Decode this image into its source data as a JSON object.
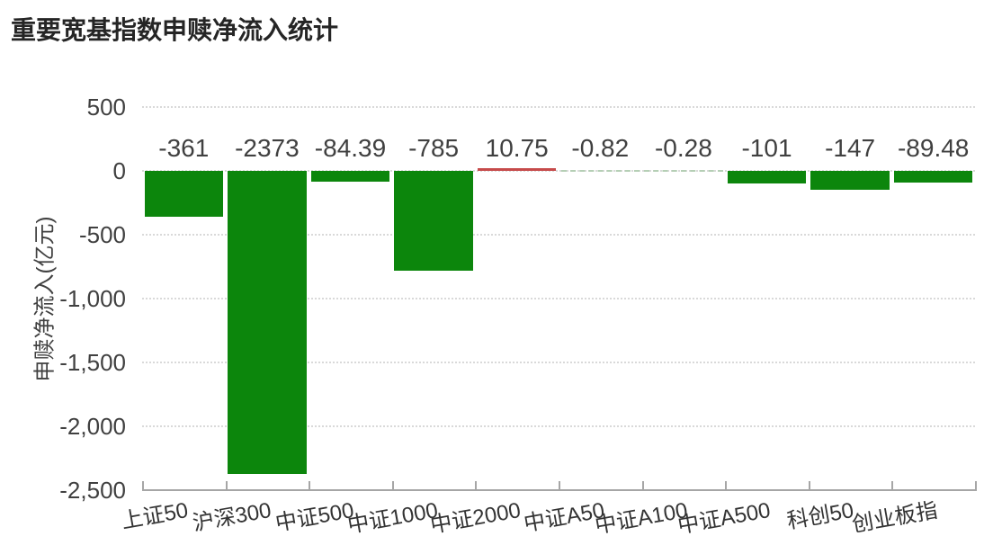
{
  "chart_data": {
    "type": "bar",
    "title": "重要宽基指数申赎净流入统计",
    "xlabel": "",
    "ylabel": "申赎净流入(亿元)",
    "categories": [
      "上证50",
      "沪深300",
      "中证500",
      "中证1000",
      "中证2000",
      "中证A50",
      "中证A100",
      "中证A500",
      "科创50",
      "创业板指"
    ],
    "values": [
      -361,
      -2373,
      -84.39,
      -785,
      10.75,
      -0.82,
      -0.28,
      -101,
      -147,
      -89.48
    ],
    "data_labels": [
      "-361",
      "-2373",
      "-84.39",
      "-785",
      "10.75",
      "-0.82",
      "-0.28",
      "-101",
      "-147",
      "-89.48"
    ],
    "ylim": [
      -2500,
      500
    ],
    "ytick_values": [
      500,
      0,
      -500,
      -1000,
      -1500,
      -2000,
      -2500
    ],
    "ytick_labels": [
      "500",
      "0",
      "-500",
      "-1,000",
      "-1,500",
      "-2,000",
      "-2,500"
    ],
    "grid": "horizontal-dotted",
    "legend": "none",
    "colors": {
      "negative_bar": "#0c860c",
      "positive_bar": "#c64a4a",
      "tiny_bar_dash": "#b5cfb5",
      "gridline": "#d9d9d9",
      "axis_line": "#a6a6a6",
      "data_label_text": "#404040",
      "tick_label_text": "#404040",
      "x_label_text": "#333333",
      "title_text": "#252525"
    }
  }
}
